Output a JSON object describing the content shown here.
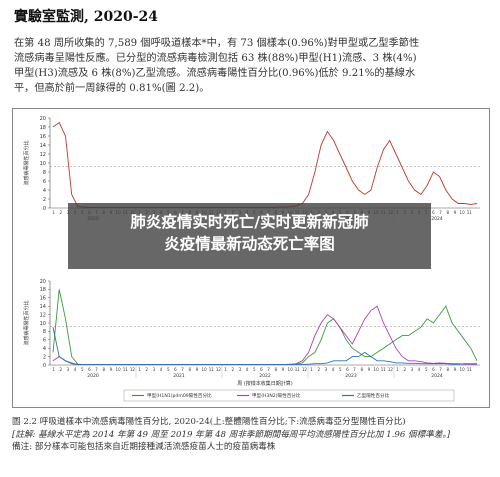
{
  "heading": "實驗室監測, 2020-24",
  "paragraph": [
    "在第 48 周所收集的 7,589 個呼吸道樣本*中，有 73 個樣本(0.96%)對甲型或乙型季節性",
    "流感病毒呈陽性反應。已分型的流感病毒檢測包括 63 株(88%)甲型(H1)流感、3 株(4%)",
    "甲型(H3)流感及 6 株(8%)乙型流感。流感病毒陽性百分比(0.96%)低於 9.21%的基線水",
    "平，但高於前一周錄得的 0.81%(圖 2.2)。"
  ],
  "banner": {
    "line1": "肺炎疫情实时死亡/实时更新新冠肺",
    "line2": "炎疫情最新动态死亡率图"
  },
  "chart_data": [
    {
      "type": "line",
      "ylabel": "流感病毒陽性百分比",
      "ylim": [
        0,
        20
      ],
      "yticks": [
        "0",
        "2",
        "4",
        "6",
        "8",
        "10",
        "12",
        "14",
        "16",
        "18",
        "20"
      ],
      "year_labels": [
        "2020",
        "2021",
        "2022",
        "2023",
        "2024"
      ],
      "series": [
        {
          "name": "總體陽性百分比",
          "color": "#c0392b",
          "values": [
            18,
            19,
            16,
            3,
            0.3,
            0.2,
            0.1,
            0.1,
            0.1,
            0.1,
            0.1,
            0.1,
            0.1,
            0.1,
            0.1,
            0.1,
            0.1,
            0.1,
            0.1,
            0.1,
            0.1,
            0.1,
            0.1,
            0.1,
            0.1,
            0.1,
            0.1,
            0.1,
            0.1,
            0.1,
            0.1,
            0.1,
            0.1,
            0.1,
            0.1,
            0.1,
            0.2,
            0.2,
            0.3,
            0.5,
            1,
            3,
            8,
            14,
            17,
            15,
            12,
            9,
            6,
            4,
            3,
            4,
            9,
            13,
            15,
            12,
            9,
            6,
            4,
            3,
            5,
            8,
            7,
            4,
            2,
            1,
            1,
            0.8,
            1
          ]
        }
      ]
    },
    {
      "type": "line",
      "ylabel": "流感病毒陽性百分比",
      "ylim": [
        0,
        20
      ],
      "yticks": [
        "0",
        "2",
        "4",
        "6",
        "8",
        "10",
        "12",
        "14",
        "16",
        "18",
        "20"
      ],
      "xlabel": "周 (按樣本收集日期計算)",
      "year_labels": [
        "2020",
        "2021",
        "2022",
        "2023",
        "2024"
      ],
      "series": [
        {
          "name": "甲型(H1N1)pdm09陽性百分比",
          "color": "#3a9a3a",
          "values": [
            3,
            18,
            11,
            2,
            0.2,
            0.1,
            0.1,
            0.1,
            0.1,
            0.1,
            0.1,
            0.1,
            0.1,
            0.1,
            0.1,
            0.1,
            0.1,
            0.1,
            0.1,
            0.1,
            0.1,
            0.1,
            0.1,
            0.1,
            0.1,
            0.1,
            0.1,
            0.1,
            0.1,
            0.1,
            0.1,
            0.1,
            0.1,
            0.1,
            0.1,
            0.1,
            0.1,
            0.1,
            0.2,
            0.2,
            0.5,
            2,
            3,
            6,
            10,
            11,
            9,
            6,
            4,
            3,
            2,
            2,
            3,
            4,
            5,
            6,
            7,
            7,
            8,
            9,
            11,
            10,
            12,
            14,
            10,
            8,
            6,
            4,
            1
          ]
        },
        {
          "name": "甲型(H3N2)陽性百分比",
          "color": "#b03fb8",
          "values": [
            1,
            2,
            1,
            0.5,
            0.1,
            0.1,
            0.1,
            0.1,
            0.1,
            0.1,
            0.1,
            0.1,
            0.1,
            0.1,
            0.1,
            0.1,
            0.1,
            0.1,
            0.1,
            0.1,
            0.1,
            0.1,
            0.1,
            0.1,
            0.1,
            0.1,
            0.1,
            0.1,
            0.1,
            0.1,
            0.1,
            0.1,
            0.1,
            0.1,
            0.1,
            0.1,
            0.1,
            0.1,
            0.1,
            0.3,
            1,
            3,
            7,
            10,
            12,
            11,
            9,
            7,
            5,
            8,
            11,
            13,
            14,
            10,
            7,
            4,
            2,
            1,
            1,
            0.8,
            0.5,
            0.4,
            0.5,
            0.4,
            0.3,
            0.3,
            0.2,
            0.2,
            0.2
          ]
        },
        {
          "name": "乙型陽性百分比",
          "color": "#2f6fbf",
          "values": [
            9,
            2,
            1,
            0.3,
            0.1,
            0.1,
            0.1,
            0.1,
            0.1,
            0.1,
            0.1,
            0.1,
            0.1,
            0.1,
            0.1,
            0.1,
            0.1,
            0.1,
            0.1,
            0.1,
            0.1,
            0.1,
            0.1,
            0.1,
            0.1,
            0.1,
            0.1,
            0.1,
            0.1,
            0.1,
            0.1,
            0.1,
            0.1,
            0.1,
            0.1,
            0.1,
            0.1,
            0.1,
            0.1,
            0.1,
            0.1,
            0.2,
            0.3,
            0.3,
            0.5,
            1,
            1,
            1,
            2,
            2,
            3,
            2,
            1,
            1,
            0.8,
            0.5,
            0.5,
            0.4,
            0.4,
            0.3,
            0.3,
            0.3,
            0.3,
            0.3,
            0.2,
            0.2,
            0.3,
            0.3,
            0.3
          ]
        }
      ]
    }
  ],
  "caption": {
    "title": "圖 2.2  呼吸道樣本中流感病毒陽性百分比, 2020-24(上:整體陽性百分比;下:流感病毒亞分型陽性百分比)",
    "note1": "[註解: 基線水平定為 2014 年第 49 周至 2019 年第 48 周非季節期間每周平均流感陽性百分比加 1.96 個標準差。]",
    "note2": "備注: 部分樣本可能包括來自近期接種減活流感疫苗人士的疫苗病毒株"
  }
}
